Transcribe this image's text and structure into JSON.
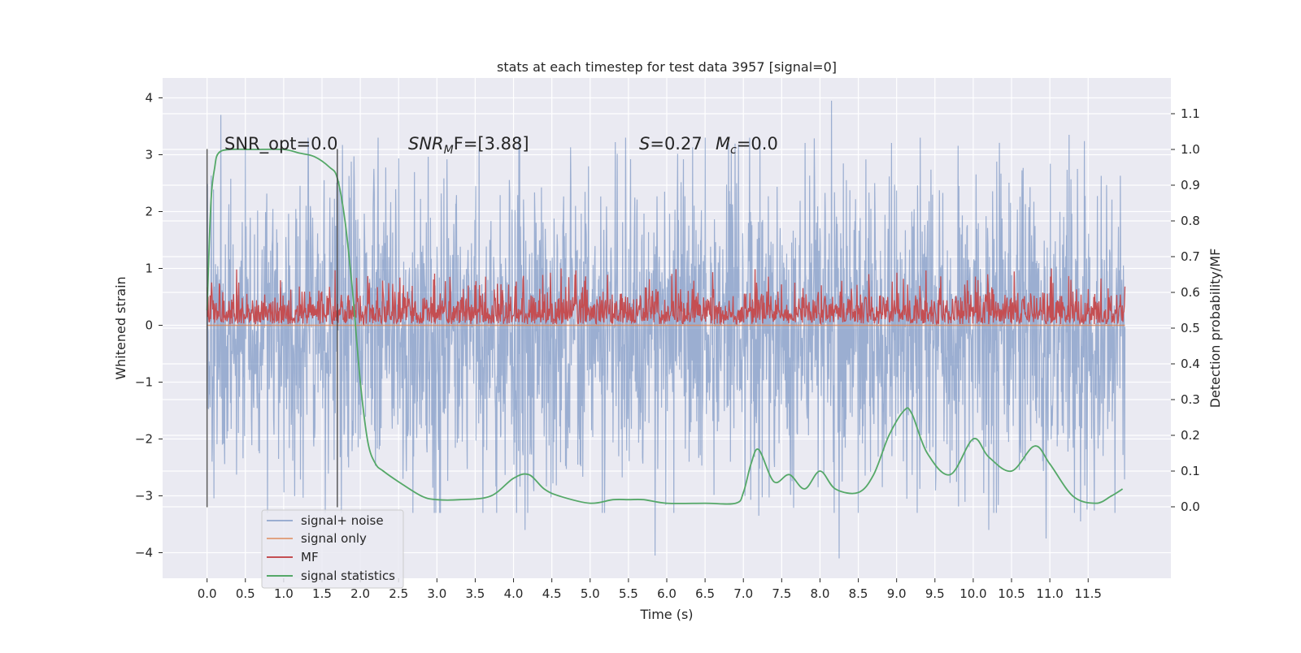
{
  "chart_data": {
    "type": "line",
    "title": "stats at each timestep for test data 3957 [signal=0]",
    "xlabel": "Time (s)",
    "ylabel_left": "Whitened strain",
    "ylabel_right": "Detection probability/MF",
    "xlim": [
      -0.58,
      12.58
    ],
    "ylim_left": [
      -4.45,
      4.35
    ],
    "ylim_right": [
      -0.2,
      1.2
    ],
    "x_ticks": [
      0.0,
      0.5,
      1.0,
      1.5,
      2.0,
      2.5,
      3.0,
      3.5,
      4.0,
      4.5,
      5.0,
      5.5,
      6.0,
      6.5,
      7.0,
      7.5,
      8.0,
      8.5,
      9.0,
      9.5,
      10.0,
      10.5,
      11.0,
      11.5
    ],
    "x_tick_labels": [
      "0.0",
      "0.5",
      "1.0",
      "1.5",
      "2.0",
      "2.5",
      "3.0",
      "3.5",
      "4.0",
      "4.5",
      "5.0",
      "5.5",
      "6.0",
      "6.5",
      "7.0",
      "7.5",
      "8.0",
      "8.5",
      "9.0",
      "9.5",
      "10.0",
      "10.5",
      "11.0",
      "11.5"
    ],
    "y_left_ticks": [
      4,
      3,
      2,
      1,
      0,
      -1,
      -2,
      -3,
      -4
    ],
    "y_left_tick_labels": [
      "4",
      "3",
      "2",
      "1",
      "0",
      "−1",
      "−2",
      "−3",
      "−4"
    ],
    "y_right_ticks": [
      1.1,
      1.0,
      0.9,
      0.8,
      0.7,
      0.6,
      0.5,
      0.4,
      0.3,
      0.2,
      0.1,
      0.0
    ],
    "y_right_tick_labels": [
      "1.1",
      "1.0",
      "0.9",
      "0.8",
      "0.7",
      "0.6",
      "0.5",
      "0.4",
      "0.3",
      "0.2",
      "0.1",
      "0.0"
    ],
    "grid": true,
    "legend_placement": "lower-left",
    "annotations": {
      "snr_opt": "SNR_opt=0.0",
      "snr_mf_prefix": "SNR",
      "snr_mf_sub": "M",
      "snr_mf_suffix": "F=[3.88]",
      "s_label": "S",
      "s_value": "=0.27",
      "mc_label": "M",
      "mc_sub": "c",
      "mc_value": "=0.0"
    },
    "vertical_lines": [
      {
        "x": 0.0,
        "y_range": [
          -3.2,
          3.1
        ]
      },
      {
        "x": 1.7,
        "y_range": [
          -3.2,
          3.1
        ]
      }
    ],
    "series": [
      {
        "name": "signal+ noise",
        "color": "#4c72b0",
        "axis": "left",
        "t_range": [
          0.0,
          11.98
        ],
        "envelope_typical": [
          -2.2,
          2.0
        ],
        "extreme_peaks": [
          [
            0.18,
            3.7
          ],
          [
            0.5,
            3.1
          ],
          [
            1.32,
            3.3
          ],
          [
            8.15,
            3.95
          ],
          [
            11.25,
            3.35
          ],
          [
            6.5,
            3.3
          ],
          [
            3.55,
            3.1
          ],
          [
            3.6,
            -3.3
          ],
          [
            4.15,
            -3.6
          ],
          [
            5.85,
            -4.05
          ],
          [
            7.2,
            -3.35
          ],
          [
            8.25,
            -4.1
          ],
          [
            10.2,
            -3.6
          ],
          [
            10.95,
            -3.75
          ],
          [
            11.4,
            -3.45
          ]
        ]
      },
      {
        "name": "signal only",
        "color": "#dd8452",
        "axis": "left",
        "t_range": [
          0.0,
          11.98
        ],
        "values_constant": 0.0
      },
      {
        "name": "MF",
        "color": "#c44e52",
        "axis": "left",
        "t_range": [
          0.0,
          11.98
        ],
        "baseline": 0.02,
        "typical_top": 0.55,
        "max": 1.0
      },
      {
        "name": "signal statistics",
        "color": "#55a868",
        "axis": "right",
        "x": [
          0.0,
          0.05,
          0.1,
          0.15,
          0.3,
          0.6,
          1.0,
          1.2,
          1.4,
          1.6,
          1.7,
          1.8,
          1.9,
          2.0,
          2.1,
          2.2,
          2.3,
          2.5,
          2.8,
          3.0,
          3.3,
          3.7,
          4.0,
          4.2,
          4.4,
          4.6,
          5.0,
          5.3,
          5.5,
          5.7,
          6.0,
          6.5,
          6.9,
          7.0,
          7.1,
          7.2,
          7.4,
          7.6,
          7.8,
          8.0,
          8.2,
          8.5,
          8.7,
          8.9,
          9.1,
          9.2,
          9.4,
          9.7,
          10.0,
          10.2,
          10.5,
          10.8,
          11.0,
          11.3,
          11.6,
          11.8,
          11.95
        ],
        "values": [
          0.55,
          0.85,
          0.95,
          0.99,
          1.0,
          1.0,
          1.0,
          0.99,
          0.98,
          0.95,
          0.92,
          0.8,
          0.6,
          0.35,
          0.18,
          0.12,
          0.1,
          0.07,
          0.03,
          0.02,
          0.02,
          0.03,
          0.08,
          0.09,
          0.05,
          0.03,
          0.01,
          0.02,
          0.02,
          0.02,
          0.01,
          0.01,
          0.01,
          0.04,
          0.12,
          0.16,
          0.07,
          0.09,
          0.05,
          0.1,
          0.05,
          0.04,
          0.09,
          0.2,
          0.27,
          0.26,
          0.15,
          0.09,
          0.19,
          0.14,
          0.1,
          0.17,
          0.12,
          0.03,
          0.01,
          0.03,
          0.05
        ]
      }
    ]
  }
}
